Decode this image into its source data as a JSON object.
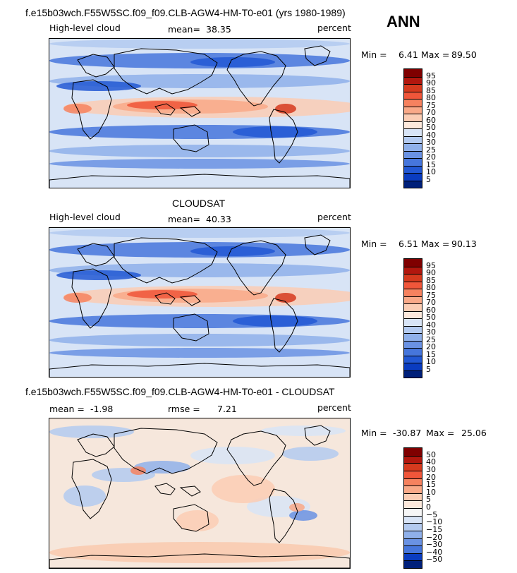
{
  "season": "ANN",
  "panels": [
    {
      "title": "f.e15b03wch.F55W5SC.f09_f09.CLB-AGW4-HM-T0-e01 (yrs 1980-1989)",
      "left_label": "High-level cloud",
      "mean_label": "mean=",
      "mean_value": "38.35",
      "units": "percent",
      "min_label": "Min =",
      "min_value": "6.41",
      "max_label": "Max =",
      "max_value": "89.50",
      "kind": "model"
    },
    {
      "title": "CLOUDSAT",
      "left_label": "High-level cloud",
      "mean_label": "mean=",
      "mean_value": "40.33",
      "units": "percent",
      "min_label": "Min =",
      "min_value": "6.51",
      "max_label": "Max =",
      "max_value": "90.13",
      "kind": "obs"
    },
    {
      "title": "f.e15b03wch.F55W5SC.f09_f09.CLB-AGW4-HM-T0-e01 - CLOUDSAT",
      "left_label": "mean =",
      "mean_label": "",
      "mean_value": "-1.98",
      "rmse_label": "rmse =",
      "rmse_value": "7.21",
      "units": "percent",
      "min_label": "Min =",
      "min_value": "-30.87",
      "max_label": "Max =",
      "max_value": "25.06",
      "kind": "diff"
    }
  ],
  "colorbar_abs": {
    "labels": [
      "95",
      "90",
      "85",
      "80",
      "75",
      "70",
      "60",
      "50",
      "40",
      "30",
      "25",
      "20",
      "15",
      "10",
      "5"
    ],
    "colors": [
      "#7f0000",
      "#b2170e",
      "#d63a1e",
      "#f0563a",
      "#f6825f",
      "#f9a988",
      "#fbcdb4",
      "#fde9dc",
      "#d8e4f6",
      "#b3caf0",
      "#8fb0ea",
      "#6a92e3",
      "#4676dc",
      "#2258d4",
      "#0a3cc0",
      "#00207a"
    ]
  },
  "colorbar_diff": {
    "labels": [
      "50",
      "40",
      "30",
      "20",
      "15",
      "10",
      "5",
      "0",
      "−5",
      "−10",
      "−15",
      "−20",
      "−30",
      "−40",
      "−50"
    ],
    "colors": [
      "#7f0000",
      "#b2170e",
      "#d63a1e",
      "#f0563a",
      "#f6825f",
      "#f9a988",
      "#fbcdb4",
      "#fde9dc",
      "#f6f6f6",
      "#d8e4f6",
      "#b3caf0",
      "#8fb0ea",
      "#6a92e3",
      "#4676dc",
      "#0a3cc0",
      "#00207a"
    ]
  }
}
